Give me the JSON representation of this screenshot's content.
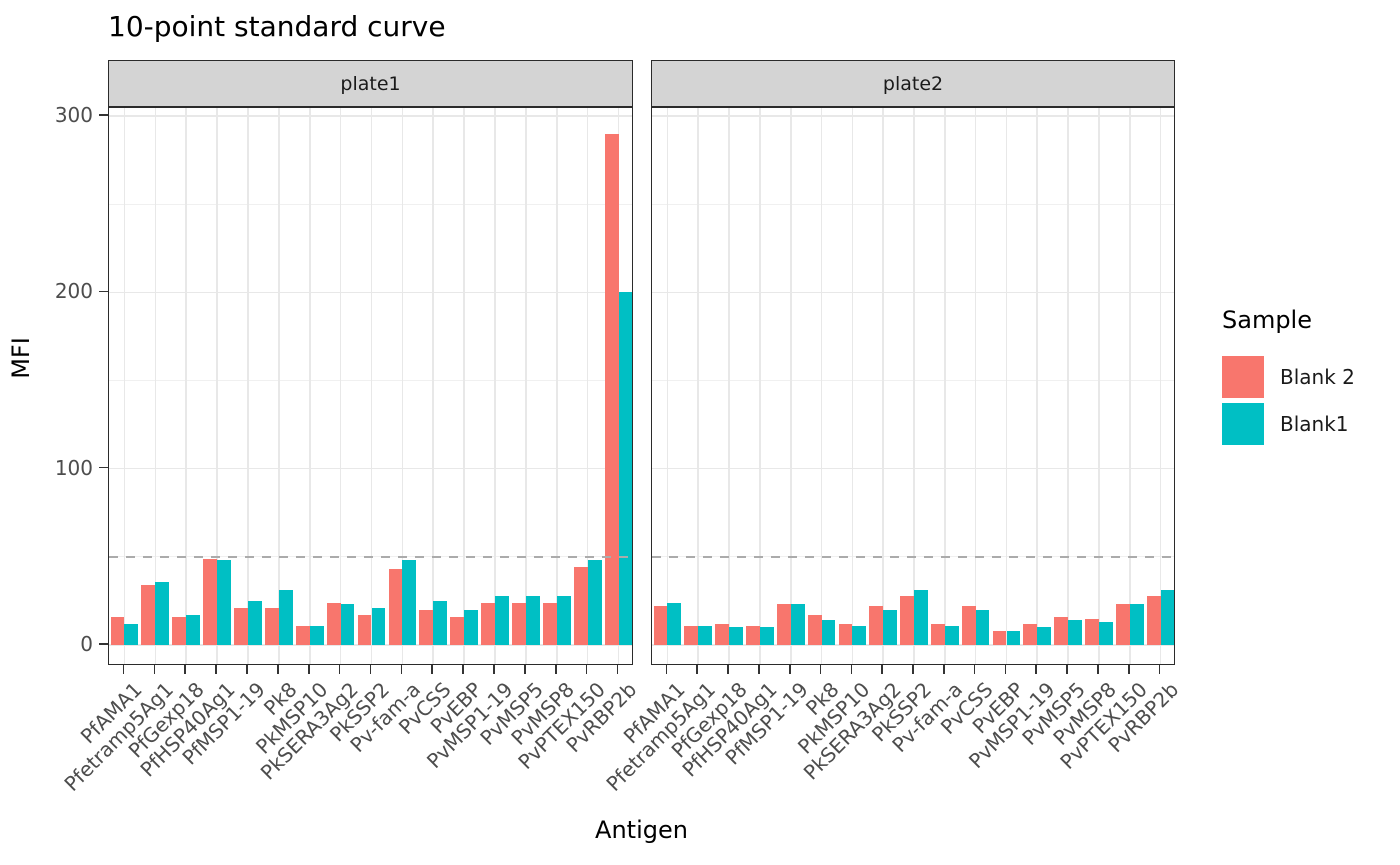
{
  "title": "10-point standard curve",
  "x_axis_title": "Antigen",
  "y_axis_title": "MFI",
  "legend": {
    "title": "Sample",
    "items": [
      {
        "label": "Blank 2",
        "color": "#F8766D"
      },
      {
        "label": "Blank1",
        "color": "#00BFC4"
      }
    ]
  },
  "colors": {
    "bar_blank2": "#F8766D",
    "bar_blank1": "#00BFC4",
    "strip_fill": "#D4D4D4",
    "panel_border": "#2B2B2B",
    "grid_major": "#E8E8E8",
    "grid_minor": "#F0F0F0",
    "axis_text": "#4D4D4D",
    "reference_line": "#ABABAB"
  },
  "chart_data": {
    "type": "bar",
    "title": "10-point standard curve",
    "xlabel": "Antigen",
    "ylabel": "MFI",
    "ylim": [
      0,
      305
    ],
    "y_ticks": [
      0,
      100,
      200,
      300
    ],
    "y_minor_ticks": [
      50,
      150,
      250
    ],
    "reference_line_y": 50,
    "legend_position": "right",
    "grid": true,
    "categories": [
      "PfAMA1",
      "Pfetramp5Ag1",
      "PfGexp18",
      "PfHSP40Ag1",
      "PfMSP1-19",
      "Pk8",
      "PkMSP10",
      "PkSERA3Ag2",
      "PkSSP2",
      "Pv-fam-a",
      "PvCSS",
      "PvEBP",
      "PvMSP1-19",
      "PvMSP5",
      "PvMSP8",
      "PvPTEX150",
      "PvRBP2b"
    ],
    "facets": [
      {
        "name": "plate1",
        "series": [
          {
            "name": "Blank 2",
            "color": "#F8766D",
            "values": [
              16,
              34,
              16,
              49,
              21,
              21,
              11,
              24,
              17,
              43,
              20,
              16,
              24,
              24,
              24,
              44,
              290
            ]
          },
          {
            "name": "Blank1",
            "color": "#00BFC4",
            "values": [
              12,
              36,
              17,
              48,
              25,
              31,
              11,
              23,
              21,
              48,
              25,
              20,
              28,
              28,
              28,
              48,
              200
            ]
          }
        ]
      },
      {
        "name": "plate2",
        "series": [
          {
            "name": "Blank 2",
            "color": "#F8766D",
            "values": [
              22,
              11,
              12,
              11,
              23,
              17,
              12,
              22,
              28,
              12,
              22,
              8,
              12,
              16,
              15,
              23,
              28
            ]
          },
          {
            "name": "Blank1",
            "color": "#00BFC4",
            "values": [
              24,
              11,
              10,
              10,
              23,
              14,
              11,
              20,
              31,
              11,
              20,
              8,
              10,
              14,
              13,
              23,
              31
            ]
          }
        ]
      }
    ]
  }
}
